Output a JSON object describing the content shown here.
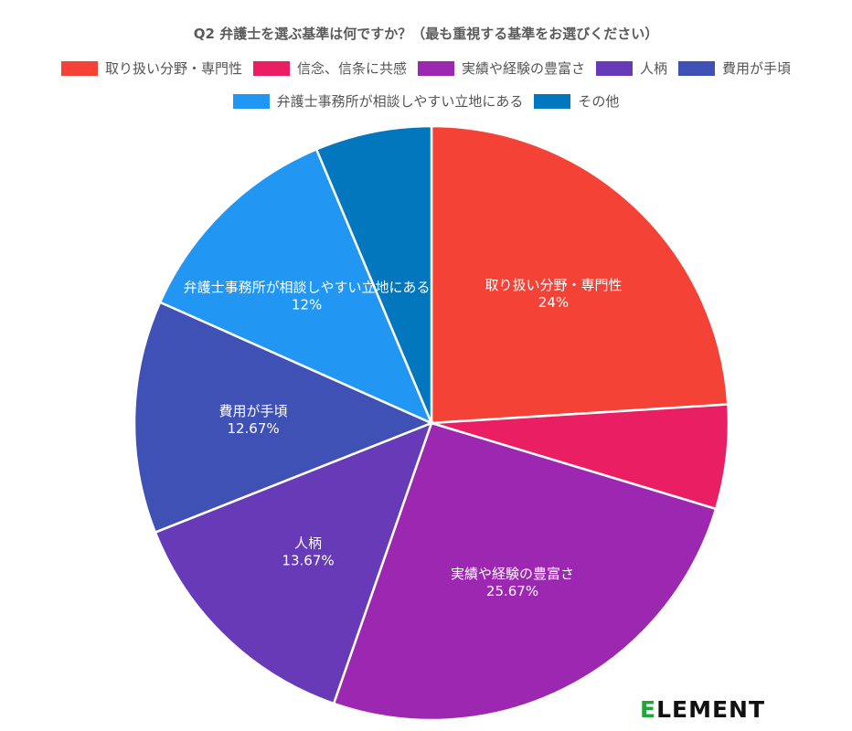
{
  "chart_data": {
    "type": "pie",
    "title": "Q2 弁護士を選ぶ基準は何ですか？（最も重視する基準をお選びください）",
    "legend_position": "top",
    "slices": [
      {
        "name": "取り扱い分野・専門性",
        "value": 24,
        "label": "24%",
        "color": "#f44336",
        "show_label": true
      },
      {
        "name": "信念、信条に共感",
        "value": 5.67,
        "label": "5.67%",
        "color": "#e91e63",
        "show_label": false
      },
      {
        "name": "実績や経験の豊富さ",
        "value": 25.67,
        "label": "25.67%",
        "color": "#9c27b0",
        "show_label": true
      },
      {
        "name": "人柄",
        "value": 13.67,
        "label": "13.67%",
        "color": "#673ab7",
        "show_label": true
      },
      {
        "name": "費用が手頃",
        "value": 12.67,
        "label": "12.67%",
        "color": "#3f51b5",
        "show_label": true
      },
      {
        "name": "弁護士事務所が相談しやすい立地にある",
        "value": 12,
        "label": "12%",
        "color": "#2196f3",
        "show_label": true
      },
      {
        "name": "その他",
        "value": 6.33,
        "label": "6.33%",
        "color": "#0277bd",
        "show_label": false
      }
    ]
  },
  "logo": {
    "first": "E",
    "rest": "LEMENT"
  }
}
